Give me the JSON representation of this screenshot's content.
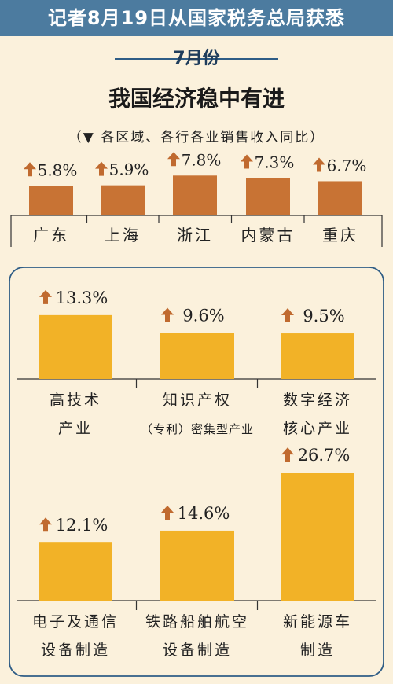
{
  "header": {
    "title": "记者8月19日从国家税务总局获悉"
  },
  "month": "7月份",
  "main_title": "我国经济稳中有进",
  "subtitle": "（▼ 各区域、各行各业销售收入同比）",
  "colors": {
    "banner": "#4c7b9f",
    "region_bar": "#c87334",
    "industry_bar": "#f2b227",
    "arrow": "#c06a2f",
    "panel_border": "#2f5d86"
  },
  "icons": {
    "increase": "up-arrow-icon"
  },
  "chart_data": [
    {
      "type": "bar",
      "title": "",
      "categories": [
        "广东",
        "上海",
        "浙江",
        "内蒙古",
        "重庆"
      ],
      "values": [
        5.8,
        5.9,
        7.8,
        7.3,
        6.7
      ],
      "labels": [
        "5.8%",
        "5.9%",
        "7.8%",
        "7.3%",
        "6.7%"
      ],
      "unit": "%"
    },
    {
      "type": "bar",
      "title": "",
      "categories": [
        [
          "高技术",
          "产业"
        ],
        [
          "知识产权",
          "（专利）密集型产业"
        ],
        [
          "数字经济",
          "核心产业"
        ],
        [
          "电子及通信",
          "设备制造"
        ],
        [
          "铁路船舶航空",
          "设备制造"
        ],
        [
          "新能源车",
          "制造"
        ]
      ],
      "values": [
        13.3,
        9.6,
        9.5,
        12.1,
        14.6,
        26.7
      ],
      "labels": [
        "13.3%",
        "9.6%",
        "9.5%",
        "12.1%",
        "14.6%",
        "26.7%"
      ],
      "unit": "%"
    }
  ]
}
